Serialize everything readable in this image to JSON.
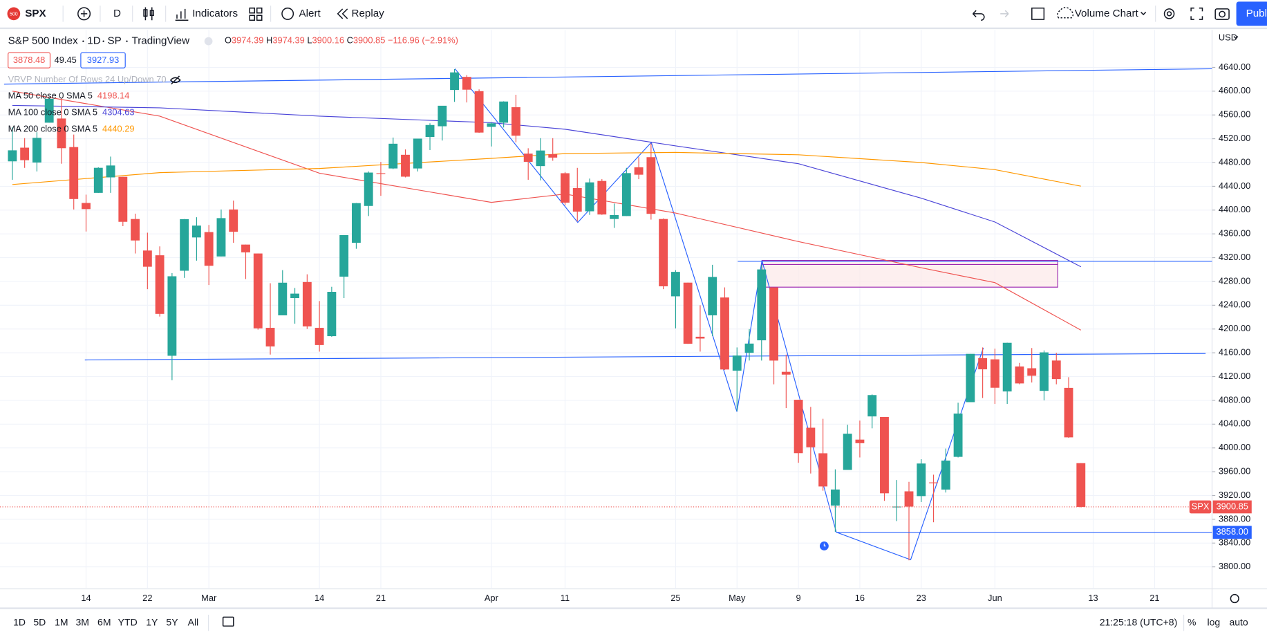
{
  "toolbar": {
    "logo": "500",
    "symbol": "SPX",
    "interval": "D",
    "indicators": "Indicators",
    "alert": "Alert",
    "replay": "Replay",
    "layout": "Volume Chart",
    "publish": "Publ"
  },
  "legend": {
    "name": "S&P 500 Index",
    "interval": "1D",
    "exchange": "SP",
    "source": "TradingView",
    "ohlc_letters": [
      "O",
      "H",
      "L",
      "C"
    ],
    "change": "−116.96 (−2.91%)",
    "bid": "3878.48",
    "spread": "49.45",
    "ask": "3927.93",
    "vrvp": "VRVP Number Of Rows 24 Up/Down 70"
  },
  "chart_data": {
    "type": "candlestick",
    "currency": "USD",
    "symbol_tag": "SPX",
    "up_color": "#26a69a",
    "down_color": "#ef5350",
    "grid": true,
    "categories": [
      null,
      null,
      null,
      null,
      null,
      null,
      "14",
      null,
      null,
      null,
      null,
      "22",
      null,
      null,
      null,
      null,
      "Mar",
      null,
      null,
      null,
      null,
      null,
      null,
      null,
      null,
      "14",
      null,
      null,
      null,
      null,
      "21",
      null,
      null,
      null,
      null,
      null,
      null,
      null,
      null,
      "Apr",
      null,
      null,
      null,
      null,
      null,
      "11",
      null,
      null,
      null,
      null,
      null,
      null,
      null,
      null,
      "25",
      null,
      null,
      null,
      null,
      "May",
      null,
      null,
      null,
      null,
      "9",
      null,
      null,
      null,
      null,
      "16",
      null,
      null,
      null,
      null,
      "23",
      null,
      null,
      null,
      null,
      null,
      "Jun",
      null,
      null,
      null,
      null,
      null,
      null,
      null,
      "13",
      null,
      null,
      null,
      null,
      "21"
    ],
    "open": [
      4482,
      4505,
      4480,
      4547,
      4554,
      4506,
      4412,
      4429,
      4455,
      4456,
      4385,
      4332,
      4324,
      4155,
      4298,
      4354,
      4363,
      4322,
      4401,
      4342,
      4327,
      4202,
      4223,
      4252,
      4279,
      4202,
      4188,
      4288,
      4345,
      4407,
      4462,
      4470,
      4493,
      4470,
      4523,
      4541,
      4602,
      4624,
      4600,
      4540,
      4547,
      4573,
      4495,
      4474,
      4494,
      4462,
      4437,
      4398,
      4449,
      4385,
      4390,
      4472,
      4489,
      4385,
      4255,
      4278,
      4187,
      4223,
      4253,
      4130,
      4160,
      4181,
      4270,
      4128,
      4081,
      4034,
      3991,
      3903,
      3963,
      4014,
      4053,
      4052,
      3900,
      3927,
      3919,
      3942,
      3930,
      3985,
      4077,
      4151,
      4149,
      4095,
      4137,
      4134,
      4096,
      4147,
      4101,
      3974.39,
      null,
      null,
      null,
      null,
      null,
      null
    ],
    "high": [
      4539,
      4521,
      4531,
      4590,
      4588,
      4527,
      4426,
      4472,
      4490,
      4456,
      4394,
      4362,
      4339,
      4294,
      4385,
      4388,
      4375,
      4401,
      4416,
      4342,
      4327,
      4277,
      4299,
      4269,
      4292,
      4247,
      4271,
      4358,
      4412,
      4465,
      4481,
      4522,
      4502,
      4520,
      4546,
      4575,
      4637,
      4627,
      4603,
      4548,
      4583,
      4594,
      4504,
      4521,
      4521,
      4464,
      4471,
      4453,
      4452,
      4411,
      4471,
      4489,
      4512,
      4386,
      4299,
      4278,
      4240,
      4308,
      4270,
      4169,
      4200,
      4308,
      4270,
      4157,
      4081,
      4069,
      4049,
      3964,
      4039,
      4046,
      4090,
      4052,
      3946,
      3943,
      3981,
      3955,
      3999,
      4076,
      4158,
      4169,
      4167,
      4177,
      4143,
      4168,
      4164,
      4160,
      4119,
      3974.39,
      null,
      null,
      null,
      null,
      null,
      null
    ],
    "low": [
      4451,
      4471,
      4465,
      4547,
      4478,
      4401,
      4364,
      4429,
      4429,
      4373,
      4327,
      4267,
      4221,
      4114,
      4286,
      4315,
      4274,
      4322,
      4345,
      4284,
      4199,
      4157,
      4223,
      4209,
      4200,
      4162,
      4187,
      4252,
      4335,
      4390,
      4424,
      4469,
      4455,
      4465,
      4501,
      4517,
      4582,
      4581,
      4530,
      4507,
      4539,
      4514,
      4451,
      4450,
      4483,
      4408,
      4381,
      4392,
      4392,
      4370,
      4390,
      4452,
      4384,
      4267,
      4201,
      4175,
      4162,
      4188,
      4131,
      4062,
      4147,
      4147,
      4107,
      4067,
      3975,
      3957,
      3928,
      3859,
      3963,
      3984,
      4033,
      3911,
      3877,
      3811,
      3909,
      3875,
      3925,
      3984,
      4077,
      4084,
      4074,
      4074,
      4107,
      4110,
      4080,
      4107,
      4017,
      3900.16,
      null,
      null,
      null,
      null,
      null,
      null
    ],
    "close": [
      4500.5,
      4483.9,
      4521.5,
      4587.2,
      4504.1,
      4418.6,
      4401.7,
      4471.1,
      4475,
      4380.3,
      4348.9,
      4304.8,
      4225.5,
      4288.7,
      4384.7,
      4373.9,
      4306.3,
      4386.5,
      4363.5,
      4328.9,
      4201.1,
      4170.7,
      4277.9,
      4259.5,
      4204.3,
      4173.1,
      4262.5,
      4357.9,
      4411.7,
      4463.1,
      4461.2,
      4511.6,
      4456.2,
      4520.2,
      4543.1,
      4575.5,
      4631.6,
      4602.5,
      4530.4,
      4545.9,
      4582.6,
      4525.1,
      4481.2,
      4500.2,
      4488.3,
      4412.5,
      4397.5,
      4446.6,
      4392.6,
      4391.7,
      4462.2,
      4459.5,
      4393.7,
      4271.8,
      4296.1,
      4175.2,
      4184,
      4287.5,
      4131.9,
      4155.4,
      4175.5,
      4300.2,
      4146.9,
      4123.3,
      3991.2,
      4001.1,
      3935.2,
      3930.1,
      4023.9,
      4008,
      4088.9,
      3923.7,
      3901.4,
      3901.4,
      3973.8,
      3941.5,
      3978.7,
      4057.8,
      4158.2,
      4132.2,
      4101.2,
      4176.8,
      4108.5,
      4121.4,
      4160.7,
      4115.8,
      4017.8,
      3900.85,
      null,
      null,
      null,
      null,
      null,
      null
    ],
    "ma_series": [
      {
        "name": "MA 50 close 0 SMA 5",
        "color": "#ef5350",
        "x": [
          0,
          12,
          25,
          39,
          45,
          54,
          64,
          74,
          80,
          87
        ],
        "values": [
          4600,
          4558,
          4462,
          4413,
          4427,
          4395,
          4347,
          4303,
          4278,
          4198.14
        ]
      },
      {
        "name": "MA 100 close 0 SMA 5",
        "color": "#4b45d8",
        "x": [
          0,
          12,
          25,
          39,
          45,
          54,
          64,
          74,
          80,
          87
        ],
        "values": [
          4576,
          4572,
          4558,
          4547,
          4536,
          4508,
          4478,
          4420,
          4380,
          4304.63
        ]
      },
      {
        "name": "MA 200 close 0 SMA 5",
        "color": "#ff9800",
        "x": [
          0,
          12,
          25,
          39,
          45,
          54,
          64,
          74,
          80,
          87
        ],
        "values": [
          4443,
          4463,
          4470,
          4487,
          4495,
          4497,
          4493,
          4480,
          4468,
          4440.29
        ]
      }
    ],
    "alert_line": {
      "value": 3858,
      "label": "3858.00"
    },
    "ylim": [
      3763,
      4703
    ],
    "yticks": [
      {
        "value": 3800,
        "label": "3800.00"
      },
      {
        "value": 3840,
        "label": "3840.00"
      },
      {
        "value": 3880,
        "label": "3880.00"
      },
      {
        "value": 3920,
        "label": "3920.00"
      },
      {
        "value": 3960,
        "label": "3960.00"
      },
      {
        "value": 4000,
        "label": "4000.00"
      },
      {
        "value": 4040,
        "label": "4040.00"
      },
      {
        "value": 4080,
        "label": "4080.00"
      },
      {
        "value": 4120,
        "label": "4120.00"
      },
      {
        "value": 4160,
        "label": "4160.00"
      },
      {
        "value": 4200,
        "label": "4200.00"
      },
      {
        "value": 4240,
        "label": "4240.00"
      },
      {
        "value": 4280,
        "label": "4280.00"
      },
      {
        "value": 4320,
        "label": "4320.00"
      },
      {
        "value": 4360,
        "label": "4360.00"
      },
      {
        "value": 4400,
        "label": "4400.00"
      },
      {
        "value": 4440,
        "label": "4440.00"
      },
      {
        "value": 4480,
        "label": "4480.00"
      },
      {
        "value": 4520,
        "label": "4520.00"
      },
      {
        "value": 4560,
        "label": "4560.00"
      },
      {
        "value": 4600,
        "label": "4600.00"
      },
      {
        "value": 4640,
        "label": "4640.00"
      }
    ]
  },
  "bottom_bar": {
    "ranges": [
      "1D",
      "5D",
      "1M",
      "3M",
      "6M",
      "YTD",
      "1Y",
      "5Y",
      "All"
    ],
    "clock": "21:25:18 (UTC+8)",
    "percent": "%",
    "log": "log",
    "auto": "auto"
  }
}
